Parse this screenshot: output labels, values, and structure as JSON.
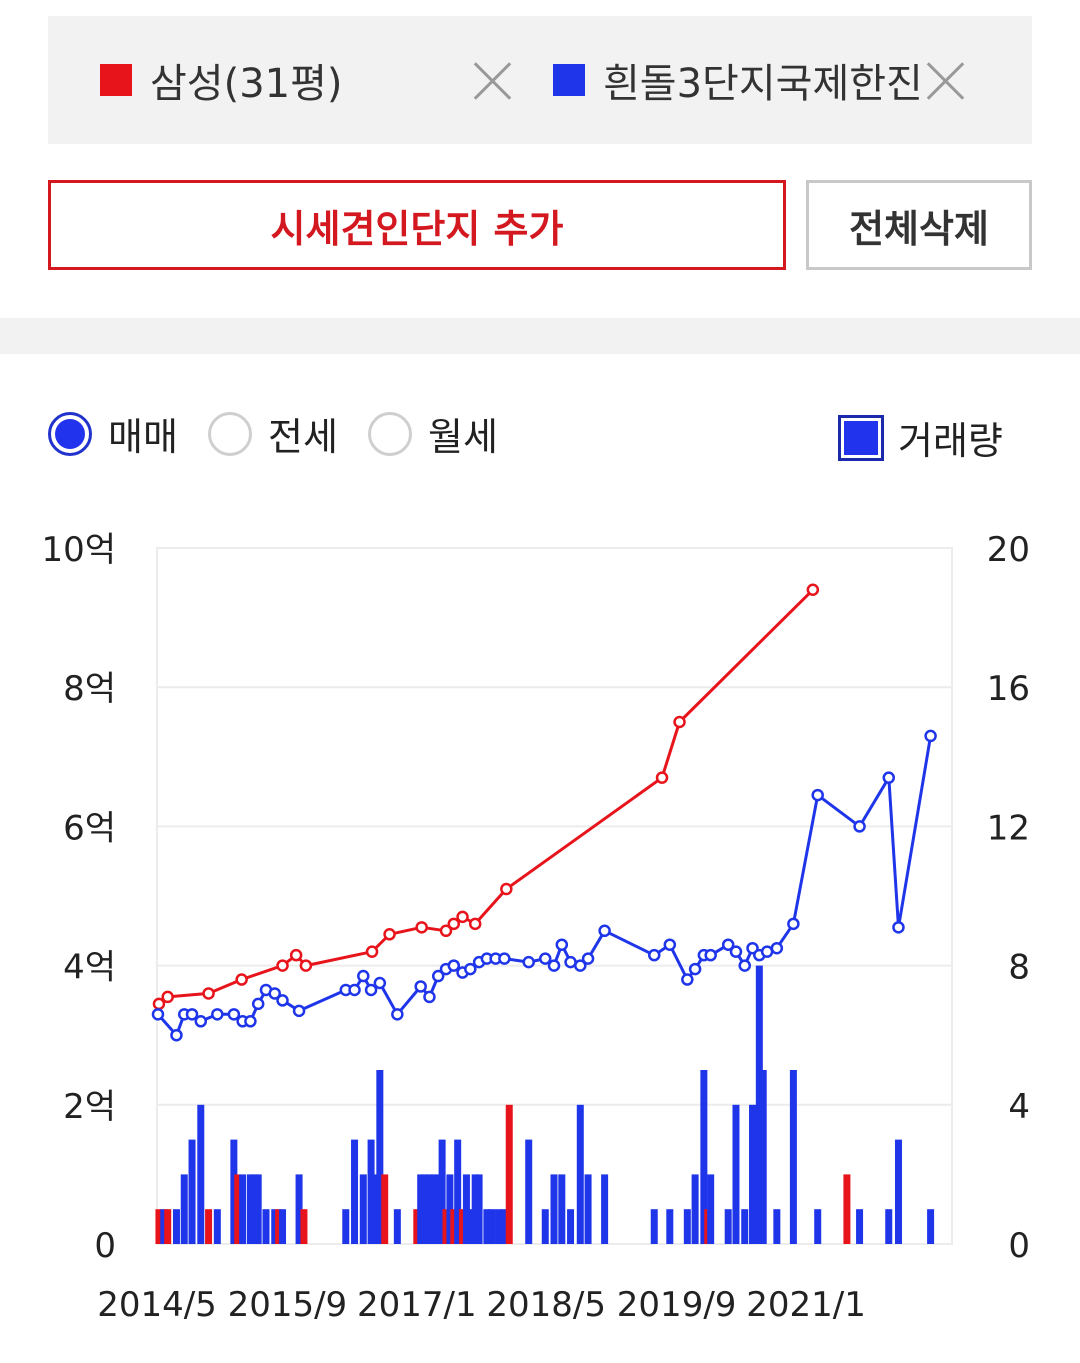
{
  "legend": {
    "items": [
      {
        "label": "삼성(31평)",
        "color": "#e8141c"
      },
      {
        "label": "흰돌3단지국제한진",
        "color": "#1f35ea"
      }
    ],
    "remove_icon": "close-icon"
  },
  "buttons": {
    "add_label": "시세견인단지 추가",
    "delete_all_label": "전체삭제"
  },
  "options": {
    "radios": [
      {
        "label": "매매",
        "selected": true
      },
      {
        "label": "전세",
        "selected": false
      },
      {
        "label": "월세",
        "selected": false
      }
    ],
    "volume_checkbox": {
      "label": "거래량",
      "checked": true
    }
  },
  "chart_data": {
    "type": "line",
    "y_left": {
      "ticks": [
        "0",
        "2억",
        "4억",
        "6억",
        "8억",
        "10억"
      ],
      "range": [
        0,
        10
      ],
      "unit": "억"
    },
    "y_right": {
      "ticks": [
        "0",
        "4",
        "8",
        "12",
        "16",
        "20"
      ],
      "range": [
        0,
        20
      ]
    },
    "x_range": [
      2014.33,
      2022.5
    ],
    "x_ticks": [
      {
        "label": "2014/5",
        "x": 2014.33
      },
      {
        "label": "2015/9",
        "x": 2015.67
      },
      {
        "label": "2017/1",
        "x": 2017.0
      },
      {
        "label": "2018/5",
        "x": 2018.33
      },
      {
        "label": "2019/9",
        "x": 2019.67
      },
      {
        "label": "2021/1",
        "x": 2021.0
      }
    ],
    "grid": true,
    "series": [
      {
        "name": "삼성(31평)",
        "color": "#e8141c",
        "points": [
          [
            2014.35,
            3.45
          ],
          [
            2014.44,
            3.55
          ],
          [
            2014.86,
            3.6
          ],
          [
            2015.2,
            3.8
          ],
          [
            2015.62,
            4.0
          ],
          [
            2015.76,
            4.15
          ],
          [
            2015.86,
            4.0
          ],
          [
            2016.54,
            4.2
          ],
          [
            2016.72,
            4.45
          ],
          [
            2017.05,
            4.55
          ],
          [
            2017.3,
            4.5
          ],
          [
            2017.38,
            4.6
          ],
          [
            2017.47,
            4.7
          ],
          [
            2017.6,
            4.6
          ],
          [
            2017.92,
            5.1
          ],
          [
            2019.52,
            6.7
          ],
          [
            2019.7,
            7.5
          ],
          [
            2021.07,
            9.4
          ]
        ]
      },
      {
        "name": "흰돌3단지국제한진",
        "color": "#1f35ea",
        "points": [
          [
            2014.34,
            3.3
          ],
          [
            2014.53,
            3.0
          ],
          [
            2014.61,
            3.3
          ],
          [
            2014.69,
            3.3
          ],
          [
            2014.78,
            3.2
          ],
          [
            2014.95,
            3.3
          ],
          [
            2015.12,
            3.3
          ],
          [
            2015.21,
            3.2
          ],
          [
            2015.29,
            3.2
          ],
          [
            2015.37,
            3.45
          ],
          [
            2015.45,
            3.65
          ],
          [
            2015.54,
            3.6
          ],
          [
            2015.62,
            3.5
          ],
          [
            2015.79,
            3.35
          ],
          [
            2016.27,
            3.65
          ],
          [
            2016.36,
            3.65
          ],
          [
            2016.45,
            3.85
          ],
          [
            2016.53,
            3.65
          ],
          [
            2016.62,
            3.75
          ],
          [
            2016.8,
            3.3
          ],
          [
            2017.04,
            3.7
          ],
          [
            2017.13,
            3.55
          ],
          [
            2017.22,
            3.85
          ],
          [
            2017.3,
            3.95
          ],
          [
            2017.38,
            4.0
          ],
          [
            2017.47,
            3.9
          ],
          [
            2017.55,
            3.95
          ],
          [
            2017.64,
            4.05
          ],
          [
            2017.72,
            4.1
          ],
          [
            2017.81,
            4.1
          ],
          [
            2017.9,
            4.1
          ],
          [
            2018.15,
            4.05
          ],
          [
            2018.32,
            4.1
          ],
          [
            2018.41,
            4.0
          ],
          [
            2018.49,
            4.3
          ],
          [
            2018.58,
            4.05
          ],
          [
            2018.68,
            4.0
          ],
          [
            2018.76,
            4.1
          ],
          [
            2018.93,
            4.5
          ],
          [
            2019.44,
            4.15
          ],
          [
            2019.6,
            4.3
          ],
          [
            2019.78,
            3.8
          ],
          [
            2019.86,
            3.95
          ],
          [
            2019.95,
            4.15
          ],
          [
            2020.02,
            4.15
          ],
          [
            2020.2,
            4.3
          ],
          [
            2020.28,
            4.2
          ],
          [
            2020.37,
            4.0
          ],
          [
            2020.45,
            4.25
          ],
          [
            2020.52,
            4.15
          ],
          [
            2020.6,
            4.2
          ],
          [
            2020.7,
            4.25
          ],
          [
            2020.87,
            4.6
          ],
          [
            2021.12,
            6.45
          ],
          [
            2021.55,
            6.0
          ],
          [
            2021.85,
            6.7
          ],
          [
            2021.95,
            4.55
          ],
          [
            2022.28,
            7.3
          ]
        ]
      }
    ],
    "volume": {
      "axis": "right",
      "bars": [
        {
          "x": 2014.35,
          "v": 1,
          "color": "#e8141c"
        },
        {
          "x": 2014.4,
          "v": 1,
          "color": "#1f35ea"
        },
        {
          "x": 2014.44,
          "v": 1,
          "color": "#e8141c"
        },
        {
          "x": 2014.53,
          "v": 1,
          "color": "#1f35ea"
        },
        {
          "x": 2014.61,
          "v": 2,
          "color": "#1f35ea"
        },
        {
          "x": 2014.69,
          "v": 3,
          "color": "#1f35ea"
        },
        {
          "x": 2014.78,
          "v": 4,
          "color": "#1f35ea"
        },
        {
          "x": 2014.86,
          "v": 1,
          "color": "#e8141c"
        },
        {
          "x": 2014.95,
          "v": 1,
          "color": "#1f35ea"
        },
        {
          "x": 2015.12,
          "v": 3,
          "color": "#1f35ea"
        },
        {
          "x": 2015.16,
          "v": 2,
          "color": "#e8141c"
        },
        {
          "x": 2015.21,
          "v": 2,
          "color": "#1f35ea"
        },
        {
          "x": 2015.29,
          "v": 2,
          "color": "#1f35ea"
        },
        {
          "x": 2015.33,
          "v": 2,
          "color": "#1f35ea"
        },
        {
          "x": 2015.37,
          "v": 2,
          "color": "#1f35ea"
        },
        {
          "x": 2015.45,
          "v": 1,
          "color": "#1f35ea"
        },
        {
          "x": 2015.54,
          "v": 1,
          "color": "#1f35ea"
        },
        {
          "x": 2015.58,
          "v": 1,
          "color": "#e8141c"
        },
        {
          "x": 2015.62,
          "v": 1,
          "color": "#1f35ea"
        },
        {
          "x": 2015.79,
          "v": 2,
          "color": "#1f35ea"
        },
        {
          "x": 2015.84,
          "v": 1,
          "color": "#e8141c"
        },
        {
          "x": 2016.27,
          "v": 1,
          "color": "#1f35ea"
        },
        {
          "x": 2016.36,
          "v": 3,
          "color": "#1f35ea"
        },
        {
          "x": 2016.45,
          "v": 2,
          "color": "#1f35ea"
        },
        {
          "x": 2016.53,
          "v": 3,
          "color": "#1f35ea"
        },
        {
          "x": 2016.58,
          "v": 2,
          "color": "#1f35ea"
        },
        {
          "x": 2016.62,
          "v": 5,
          "color": "#1f35ea"
        },
        {
          "x": 2016.67,
          "v": 2,
          "color": "#e8141c"
        },
        {
          "x": 2016.8,
          "v": 1,
          "color": "#1f35ea"
        },
        {
          "x": 2017.0,
          "v": 1,
          "color": "#e8141c"
        },
        {
          "x": 2017.04,
          "v": 2,
          "color": "#1f35ea"
        },
        {
          "x": 2017.08,
          "v": 2,
          "color": "#1f35ea"
        },
        {
          "x": 2017.13,
          "v": 2,
          "color": "#1f35ea"
        },
        {
          "x": 2017.17,
          "v": 2,
          "color": "#1f35ea"
        },
        {
          "x": 2017.22,
          "v": 2,
          "color": "#1f35ea"
        },
        {
          "x": 2017.26,
          "v": 3,
          "color": "#1f35ea"
        },
        {
          "x": 2017.3,
          "v": 1,
          "color": "#e8141c"
        },
        {
          "x": 2017.34,
          "v": 2,
          "color": "#1f35ea"
        },
        {
          "x": 2017.38,
          "v": 1,
          "color": "#e8141c"
        },
        {
          "x": 2017.42,
          "v": 3,
          "color": "#1f35ea"
        },
        {
          "x": 2017.47,
          "v": 1,
          "color": "#e8141c"
        },
        {
          "x": 2017.51,
          "v": 2,
          "color": "#1f35ea"
        },
        {
          "x": 2017.55,
          "v": 1,
          "color": "#1f35ea"
        },
        {
          "x": 2017.6,
          "v": 2,
          "color": "#1f35ea"
        },
        {
          "x": 2017.64,
          "v": 2,
          "color": "#1f35ea"
        },
        {
          "x": 2017.72,
          "v": 1,
          "color": "#1f35ea"
        },
        {
          "x": 2017.77,
          "v": 1,
          "color": "#1f35ea"
        },
        {
          "x": 2017.84,
          "v": 1,
          "color": "#1f35ea"
        },
        {
          "x": 2017.9,
          "v": 1,
          "color": "#1f35ea"
        },
        {
          "x": 2017.95,
          "v": 4,
          "color": "#e8141c"
        },
        {
          "x": 2018.15,
          "v": 3,
          "color": "#1f35ea"
        },
        {
          "x": 2018.32,
          "v": 1,
          "color": "#1f35ea"
        },
        {
          "x": 2018.41,
          "v": 2,
          "color": "#1f35ea"
        },
        {
          "x": 2018.49,
          "v": 2,
          "color": "#1f35ea"
        },
        {
          "x": 2018.58,
          "v": 1,
          "color": "#1f35ea"
        },
        {
          "x": 2018.68,
          "v": 4,
          "color": "#1f35ea"
        },
        {
          "x": 2018.76,
          "v": 2,
          "color": "#1f35ea"
        },
        {
          "x": 2018.93,
          "v": 2,
          "color": "#1f35ea"
        },
        {
          "x": 2019.44,
          "v": 1,
          "color": "#1f35ea"
        },
        {
          "x": 2019.6,
          "v": 1,
          "color": "#1f35ea"
        },
        {
          "x": 2019.78,
          "v": 1,
          "color": "#1f35ea"
        },
        {
          "x": 2019.86,
          "v": 2,
          "color": "#1f35ea"
        },
        {
          "x": 2019.95,
          "v": 5,
          "color": "#1f35ea"
        },
        {
          "x": 2019.99,
          "v": 1,
          "color": "#e8141c"
        },
        {
          "x": 2020.02,
          "v": 2,
          "color": "#1f35ea"
        },
        {
          "x": 2020.2,
          "v": 1,
          "color": "#1f35ea"
        },
        {
          "x": 2020.28,
          "v": 4,
          "color": "#1f35ea"
        },
        {
          "x": 2020.37,
          "v": 1,
          "color": "#1f35ea"
        },
        {
          "x": 2020.45,
          "v": 4,
          "color": "#1f35ea"
        },
        {
          "x": 2020.52,
          "v": 8,
          "color": "#1f35ea"
        },
        {
          "x": 2020.56,
          "v": 5,
          "color": "#1f35ea"
        },
        {
          "x": 2020.7,
          "v": 1,
          "color": "#1f35ea"
        },
        {
          "x": 2020.87,
          "v": 5,
          "color": "#1f35ea"
        },
        {
          "x": 2021.12,
          "v": 1,
          "color": "#1f35ea"
        },
        {
          "x": 2021.42,
          "v": 2,
          "color": "#e8141c"
        },
        {
          "x": 2021.55,
          "v": 1,
          "color": "#1f35ea"
        },
        {
          "x": 2021.85,
          "v": 1,
          "color": "#1f35ea"
        },
        {
          "x": 2021.95,
          "v": 3,
          "color": "#1f35ea"
        },
        {
          "x": 2022.28,
          "v": 1,
          "color": "#1f35ea"
        }
      ]
    }
  }
}
